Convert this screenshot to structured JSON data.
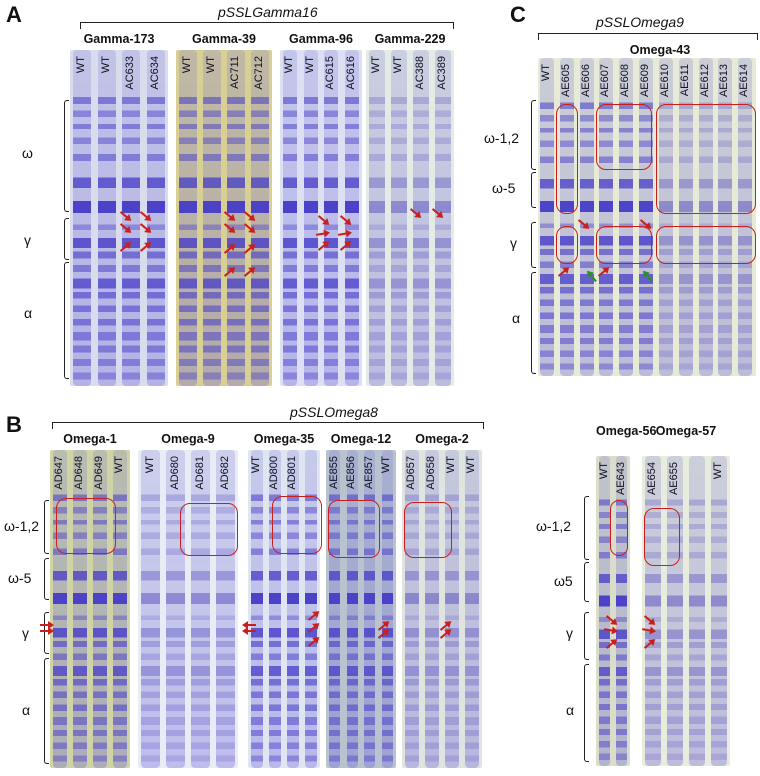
{
  "panels": {
    "A": {
      "letter": "A",
      "construct": "pSSLGamma16",
      "regions": [
        "ω",
        "γ",
        "α"
      ],
      "gels": [
        {
          "name": "Gamma-173",
          "lanes": [
            "WT",
            "WT",
            "AC633",
            "AC634"
          ],
          "bg": "#d9dced"
        },
        {
          "name": "Gamma-39",
          "lanes": [
            "WT",
            "WT",
            "AC711",
            "AC712"
          ],
          "bg": "#d8cf94"
        },
        {
          "name": "Gamma-96",
          "lanes": [
            "WT",
            "WT",
            "AC615",
            "AC616"
          ],
          "bg": "#dde0f3"
        },
        {
          "name": "Gamma-229",
          "lanes": [
            "WT",
            "WT",
            "AC388",
            "AC389"
          ],
          "bg": "#e4ebe4"
        }
      ]
    },
    "B": {
      "letter": "B",
      "construct": "pSSLOmega8",
      "regions": [
        "ω-1,2",
        "ω-5",
        "γ",
        "α"
      ],
      "gels": [
        {
          "name": "Omega-1",
          "lanes": [
            "AD647",
            "AD648",
            "AD649",
            "WT"
          ],
          "bg": "#cfd3a6"
        },
        {
          "name": "Omega-9",
          "lanes": [
            "WT",
            "AD680",
            "AD681",
            "AD682"
          ],
          "bg": "#e8ecf4"
        },
        {
          "name": "Omega-35",
          "lanes": [
            "WT",
            "AD800",
            "AD801",
            ""
          ],
          "bg": "#dfe6f2"
        },
        {
          "name": "Omega-12",
          "lanes": [
            "AE855",
            "AE856",
            "AE857",
            "WT"
          ],
          "bg": "#b9c2cf"
        },
        {
          "name": "Omega-2",
          "lanes": [
            "AD657",
            "AD658",
            "WT",
            "WT"
          ],
          "bg": "#dfe4df"
        }
      ],
      "regions_right": [
        "ω-1,2",
        "ω5",
        "γ",
        "α"
      ],
      "gels_right": [
        {
          "name": "Omega-56",
          "lanes": [
            "WT",
            "AE643"
          ],
          "bg": "#d9ddc9"
        },
        {
          "name": "Omega-57",
          "lanes": [
            "AE654",
            "AE655",
            "",
            "WT"
          ],
          "bg": "#e8ecdc"
        }
      ]
    },
    "C": {
      "letter": "C",
      "construct": "pSSLOmega9",
      "gel_name": "Omega-43",
      "regions": [
        "ω-1,2",
        "ω-5",
        "γ",
        "α"
      ],
      "lanes": [
        "WT",
        "AE605",
        "AE606",
        "AE607",
        "AE608",
        "AE609",
        "AE610",
        "AE611",
        "AE612",
        "AE613",
        "AE614"
      ],
      "bg": "#e6ead7"
    }
  }
}
